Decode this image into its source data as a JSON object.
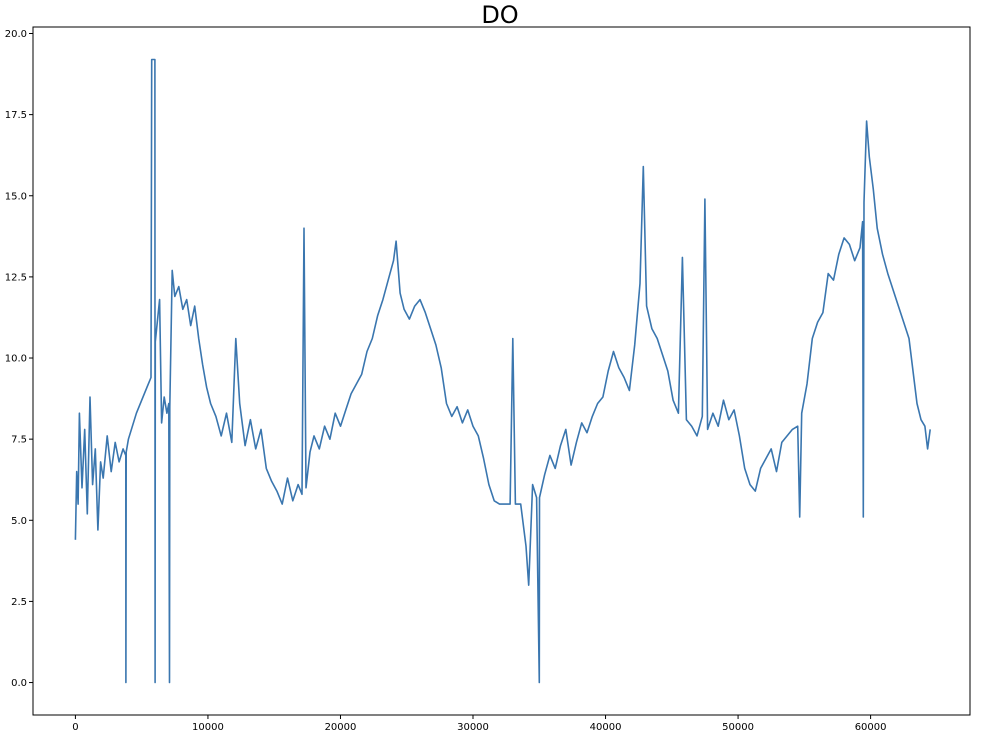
{
  "chart_data": {
    "type": "line",
    "title": "DO",
    "xlabel": "",
    "ylabel": "",
    "xlim": [
      -3200,
      67500
    ],
    "ylim": [
      -1.0,
      20.2
    ],
    "grid": false,
    "line_color": "#3a76af",
    "x_ticks": [
      0,
      10000,
      20000,
      30000,
      40000,
      50000,
      60000
    ],
    "x_tick_labels": [
      "0",
      "10000",
      "20000",
      "30000",
      "40000",
      "50000",
      "60000"
    ],
    "y_ticks": [
      0.0,
      2.5,
      5.0,
      7.5,
      10.0,
      12.5,
      15.0,
      17.5,
      20.0
    ],
    "y_tick_labels": [
      "0.0",
      "2.5",
      "5.0",
      "7.5",
      "10.0",
      "12.5",
      "15.0",
      "17.5",
      "20.0"
    ],
    "series": [
      {
        "points": [
          [
            0,
            4.4
          ],
          [
            100,
            6.5
          ],
          [
            200,
            5.5
          ],
          [
            300,
            8.3
          ],
          [
            500,
            6.0
          ],
          [
            700,
            7.8
          ],
          [
            900,
            5.2
          ],
          [
            1100,
            8.8
          ],
          [
            1300,
            6.1
          ],
          [
            1500,
            7.2
          ],
          [
            1700,
            4.7
          ],
          [
            1900,
            6.8
          ],
          [
            2100,
            6.3
          ],
          [
            2400,
            7.6
          ],
          [
            2700,
            6.5
          ],
          [
            3000,
            7.4
          ],
          [
            3300,
            6.8
          ],
          [
            3600,
            7.2
          ],
          [
            3800,
            7.0
          ],
          [
            3810,
            0.0
          ],
          [
            3830,
            7.1
          ],
          [
            4000,
            7.5
          ],
          [
            4300,
            7.9
          ],
          [
            4600,
            8.3
          ],
          [
            5000,
            8.7
          ],
          [
            5400,
            9.1
          ],
          [
            5700,
            9.4
          ],
          [
            5760,
            19.2
          ],
          [
            6000,
            19.2
          ],
          [
            6010,
            0.0
          ],
          [
            6030,
            10.5
          ],
          [
            6200,
            11.2
          ],
          [
            6350,
            11.8
          ],
          [
            6500,
            8.0
          ],
          [
            6700,
            8.8
          ],
          [
            6900,
            8.3
          ],
          [
            7050,
            8.6
          ],
          [
            7100,
            0.0
          ],
          [
            7120,
            8.5
          ],
          [
            7300,
            12.7
          ],
          [
            7500,
            11.9
          ],
          [
            7800,
            12.2
          ],
          [
            8100,
            11.5
          ],
          [
            8400,
            11.8
          ],
          [
            8700,
            11.0
          ],
          [
            9000,
            11.6
          ],
          [
            9300,
            10.6
          ],
          [
            9600,
            9.8
          ],
          [
            9900,
            9.1
          ],
          [
            10200,
            8.6
          ],
          [
            10600,
            8.2
          ],
          [
            11000,
            7.6
          ],
          [
            11400,
            8.3
          ],
          [
            11800,
            7.4
          ],
          [
            12100,
            10.6
          ],
          [
            12400,
            8.6
          ],
          [
            12800,
            7.3
          ],
          [
            13200,
            8.1
          ],
          [
            13600,
            7.2
          ],
          [
            14000,
            7.8
          ],
          [
            14400,
            6.6
          ],
          [
            14800,
            6.2
          ],
          [
            15200,
            5.9
          ],
          [
            15600,
            5.5
          ],
          [
            16000,
            6.3
          ],
          [
            16400,
            5.6
          ],
          [
            16800,
            6.1
          ],
          [
            17100,
            5.8
          ],
          [
            17250,
            14.0
          ],
          [
            17400,
            6.0
          ],
          [
            17700,
            7.1
          ],
          [
            18000,
            7.6
          ],
          [
            18400,
            7.2
          ],
          [
            18800,
            7.9
          ],
          [
            19200,
            7.5
          ],
          [
            19600,
            8.3
          ],
          [
            20000,
            7.9
          ],
          [
            20400,
            8.4
          ],
          [
            20800,
            8.9
          ],
          [
            21200,
            9.2
          ],
          [
            21600,
            9.5
          ],
          [
            22000,
            10.2
          ],
          [
            22400,
            10.6
          ],
          [
            22800,
            11.3
          ],
          [
            23200,
            11.8
          ],
          [
            23600,
            12.4
          ],
          [
            24000,
            13.0
          ],
          [
            24200,
            13.6
          ],
          [
            24500,
            12.0
          ],
          [
            24800,
            11.5
          ],
          [
            25200,
            11.2
          ],
          [
            25600,
            11.6
          ],
          [
            26000,
            11.8
          ],
          [
            26400,
            11.4
          ],
          [
            26800,
            10.9
          ],
          [
            27200,
            10.4
          ],
          [
            27600,
            9.7
          ],
          [
            28000,
            8.6
          ],
          [
            28400,
            8.2
          ],
          [
            28800,
            8.5
          ],
          [
            29200,
            8.0
          ],
          [
            29600,
            8.4
          ],
          [
            30000,
            7.9
          ],
          [
            30400,
            7.6
          ],
          [
            30800,
            6.9
          ],
          [
            31200,
            6.1
          ],
          [
            31600,
            5.6
          ],
          [
            32000,
            5.5
          ],
          [
            32400,
            5.5
          ],
          [
            32800,
            5.5
          ],
          [
            33000,
            10.6
          ],
          [
            33200,
            5.5
          ],
          [
            33600,
            5.5
          ],
          [
            34000,
            4.2
          ],
          [
            34200,
            3.0
          ],
          [
            34500,
            6.1
          ],
          [
            34800,
            5.7
          ],
          [
            35000,
            0.0
          ],
          [
            35020,
            5.7
          ],
          [
            35400,
            6.4
          ],
          [
            35800,
            7.0
          ],
          [
            36200,
            6.6
          ],
          [
            36600,
            7.3
          ],
          [
            37000,
            7.8
          ],
          [
            37400,
            6.7
          ],
          [
            37800,
            7.4
          ],
          [
            38200,
            8.0
          ],
          [
            38600,
            7.7
          ],
          [
            39000,
            8.2
          ],
          [
            39400,
            8.6
          ],
          [
            39800,
            8.8
          ],
          [
            40200,
            9.6
          ],
          [
            40600,
            10.2
          ],
          [
            41000,
            9.7
          ],
          [
            41400,
            9.4
          ],
          [
            41800,
            9.0
          ],
          [
            42200,
            10.4
          ],
          [
            42600,
            12.3
          ],
          [
            42850,
            15.9
          ],
          [
            43100,
            11.6
          ],
          [
            43500,
            10.9
          ],
          [
            43900,
            10.6
          ],
          [
            44300,
            10.1
          ],
          [
            44700,
            9.6
          ],
          [
            45100,
            8.7
          ],
          [
            45500,
            8.3
          ],
          [
            45800,
            13.1
          ],
          [
            46100,
            8.1
          ],
          [
            46500,
            7.9
          ],
          [
            46900,
            7.6
          ],
          [
            47300,
            8.2
          ],
          [
            47500,
            14.9
          ],
          [
            47700,
            7.8
          ],
          [
            48100,
            8.3
          ],
          [
            48500,
            7.9
          ],
          [
            48900,
            8.7
          ],
          [
            49300,
            8.1
          ],
          [
            49700,
            8.4
          ],
          [
            50100,
            7.6
          ],
          [
            50500,
            6.6
          ],
          [
            50900,
            6.1
          ],
          [
            51300,
            5.9
          ],
          [
            51700,
            6.6
          ],
          [
            52100,
            6.9
          ],
          [
            52500,
            7.2
          ],
          [
            52900,
            6.5
          ],
          [
            53300,
            7.4
          ],
          [
            53700,
            7.6
          ],
          [
            54100,
            7.8
          ],
          [
            54500,
            7.9
          ],
          [
            54650,
            5.1
          ],
          [
            54800,
            8.3
          ],
          [
            55200,
            9.2
          ],
          [
            55600,
            10.6
          ],
          [
            56000,
            11.1
          ],
          [
            56400,
            11.4
          ],
          [
            56800,
            12.6
          ],
          [
            57200,
            12.4
          ],
          [
            57600,
            13.2
          ],
          [
            58000,
            13.7
          ],
          [
            58400,
            13.5
          ],
          [
            58800,
            13.0
          ],
          [
            59200,
            13.4
          ],
          [
            59400,
            14.2
          ],
          [
            59450,
            5.1
          ],
          [
            59500,
            14.8
          ],
          [
            59700,
            17.3
          ],
          [
            59900,
            16.2
          ],
          [
            60200,
            15.2
          ],
          [
            60500,
            14.0
          ],
          [
            60900,
            13.2
          ],
          [
            61300,
            12.6
          ],
          [
            61700,
            12.1
          ],
          [
            62100,
            11.6
          ],
          [
            62500,
            11.1
          ],
          [
            62900,
            10.6
          ],
          [
            63200,
            9.6
          ],
          [
            63500,
            8.6
          ],
          [
            63800,
            8.1
          ],
          [
            64100,
            7.9
          ],
          [
            64300,
            7.2
          ],
          [
            64500,
            7.8
          ]
        ]
      }
    ]
  }
}
